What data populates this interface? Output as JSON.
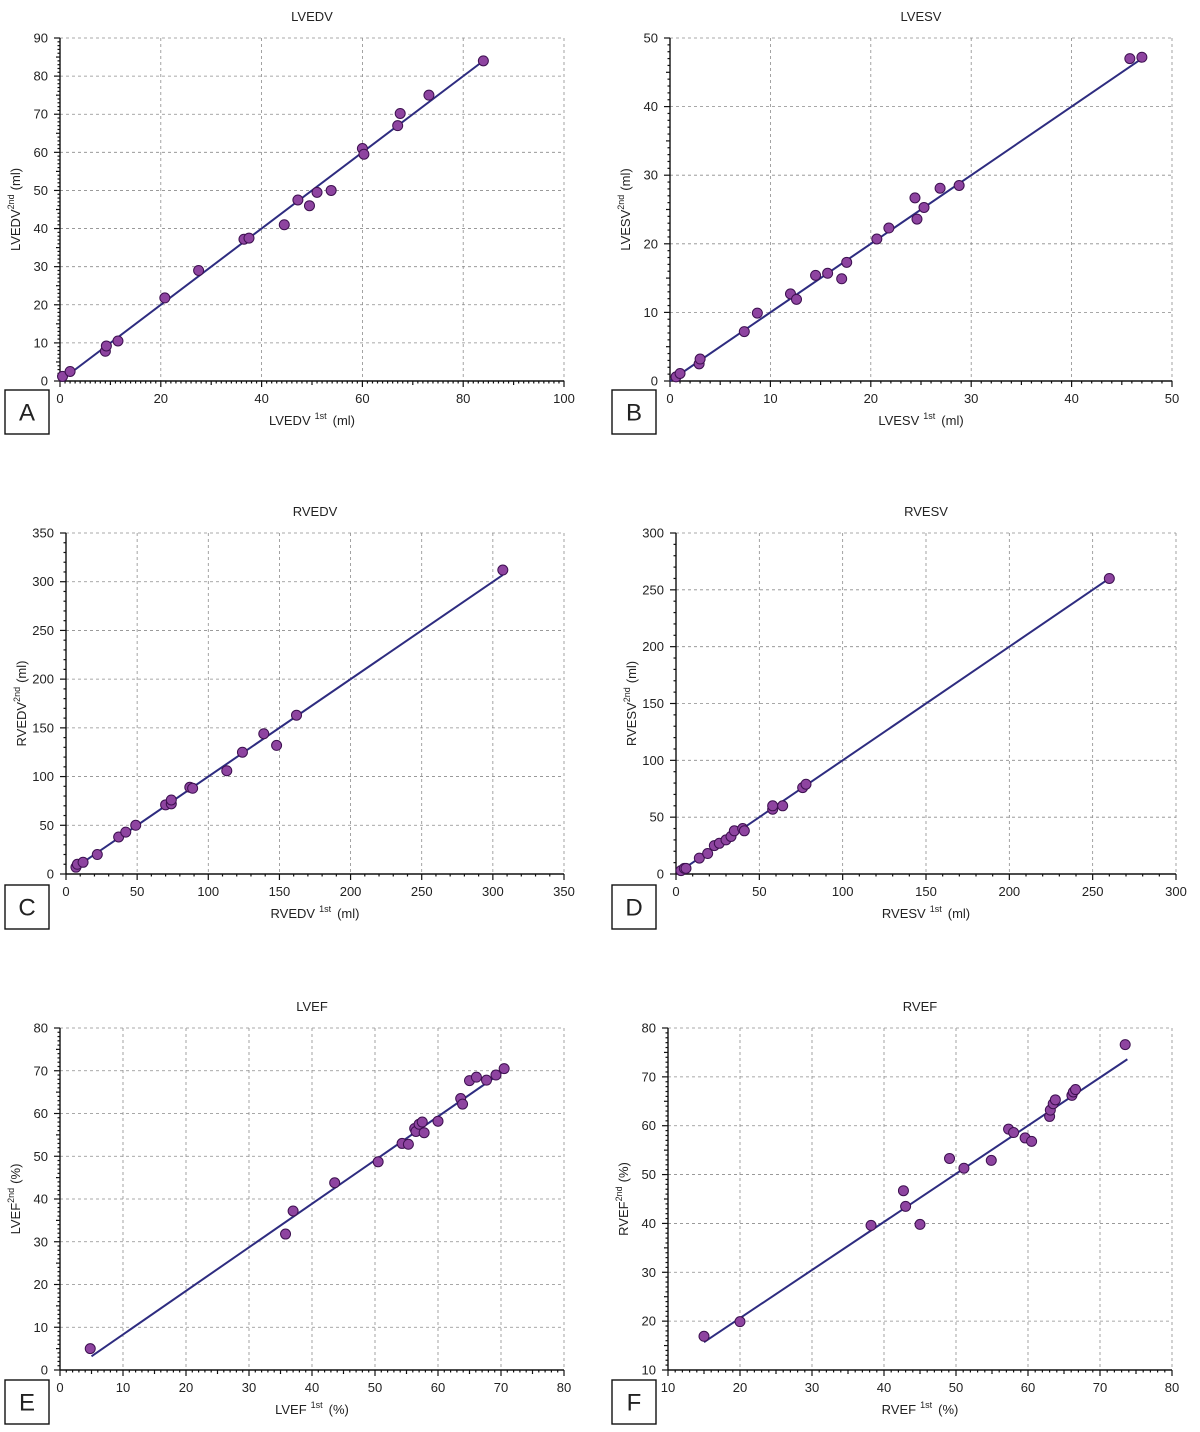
{
  "colors": {
    "point_fill": "#8e44a0",
    "point_stroke": "#3d1050",
    "fit_line": "#2e2c80"
  },
  "chart_data": [
    {
      "type": "scatter",
      "panel_letter": "A",
      "title": "LVEDV",
      "xlabel": {
        "main": "LVEDV",
        "sup": "1st",
        "unit": "(ml)"
      },
      "ylabel": {
        "main": "LVEDV",
        "sup": "2nd",
        "unit": "(ml)"
      },
      "xlim": [
        0,
        100
      ],
      "ylim": [
        0,
        90
      ],
      "xticks": [
        0,
        20,
        40,
        60,
        80,
        100
      ],
      "yticks": [
        0,
        10,
        20,
        30,
        40,
        50,
        60,
        70,
        80,
        90
      ],
      "x_minor": 1,
      "y_minor": 1,
      "fit_line": [
        [
          0,
          0
        ],
        [
          84,
          84
        ]
      ],
      "points": [
        [
          0.5,
          1.2
        ],
        [
          2,
          2.5
        ],
        [
          9,
          7.8
        ],
        [
          9.2,
          9.2
        ],
        [
          11.5,
          10.5
        ],
        [
          20.8,
          21.8
        ],
        [
          27.5,
          29
        ],
        [
          36.5,
          37.2
        ],
        [
          37.5,
          37.5
        ],
        [
          44.5,
          41
        ],
        [
          47.2,
          47.5
        ],
        [
          49.5,
          46
        ],
        [
          51,
          49.5
        ],
        [
          53.8,
          50
        ],
        [
          60,
          61
        ],
        [
          60.3,
          59.5
        ],
        [
          67,
          67
        ],
        [
          67.5,
          70.2
        ],
        [
          73.2,
          75
        ],
        [
          84,
          84
        ]
      ]
    },
    {
      "type": "scatter",
      "panel_letter": "B",
      "title": "LVESV",
      "xlabel": {
        "main": "LVESV",
        "sup": "1st",
        "unit": "(ml)"
      },
      "ylabel": {
        "main": "LVESV",
        "sup": "2nd",
        "unit": "(ml)"
      },
      "xlim": [
        0,
        50
      ],
      "ylim": [
        0,
        50
      ],
      "xticks": [
        0,
        10,
        20,
        30,
        40,
        50
      ],
      "yticks": [
        0,
        10,
        20,
        30,
        40,
        50
      ],
      "x_minor": 1,
      "y_minor": 1,
      "fit_line": [
        [
          0,
          0
        ],
        [
          47,
          47
        ]
      ],
      "points": [
        [
          0.6,
          0.6
        ],
        [
          1,
          1.1
        ],
        [
          2.9,
          2.5
        ],
        [
          3,
          3.2
        ],
        [
          7.4,
          7.2
        ],
        [
          8.7,
          9.9
        ],
        [
          12,
          12.7
        ],
        [
          12.6,
          11.9
        ],
        [
          14.5,
          15.4
        ],
        [
          15.7,
          15.7
        ],
        [
          17.1,
          14.9
        ],
        [
          17.6,
          17.3
        ],
        [
          20.6,
          20.7
        ],
        [
          21.8,
          22.3
        ],
        [
          24.4,
          26.7
        ],
        [
          24.6,
          23.6
        ],
        [
          25.3,
          25.3
        ],
        [
          26.9,
          28.1
        ],
        [
          28.8,
          28.5
        ],
        [
          45.8,
          47
        ],
        [
          47,
          47.2
        ]
      ]
    },
    {
      "type": "scatter",
      "panel_letter": "C",
      "title": "RVEDV",
      "xlabel": {
        "main": "RVEDV",
        "sup": "1st",
        "unit": "(ml)"
      },
      "ylabel": {
        "main": "RVEDV",
        "sup": "2nd",
        "unit": "(ml)"
      },
      "xlim": [
        0,
        350
      ],
      "ylim": [
        0,
        350
      ],
      "xticks": [
        0,
        50,
        100,
        150,
        200,
        250,
        300,
        350
      ],
      "yticks": [
        0,
        50,
        100,
        150,
        200,
        250,
        300,
        350
      ],
      "x_minor": 10,
      "y_minor": 10,
      "fit_line": [
        [
          7,
          7
        ],
        [
          307,
          307
        ]
      ],
      "points": [
        [
          7,
          7
        ],
        [
          8,
          10
        ],
        [
          12,
          12
        ],
        [
          22,
          20
        ],
        [
          37,
          38
        ],
        [
          42,
          43
        ],
        [
          49,
          50
        ],
        [
          70,
          71
        ],
        [
          74,
          72
        ],
        [
          74,
          76
        ],
        [
          87,
          89
        ],
        [
          89,
          88
        ],
        [
          113,
          106
        ],
        [
          124,
          125
        ],
        [
          139,
          144
        ],
        [
          148,
          132
        ],
        [
          162,
          163
        ],
        [
          307,
          312
        ]
      ]
    },
    {
      "type": "scatter",
      "panel_letter": "D",
      "title": "RVESV",
      "xlabel": {
        "main": "RVESV",
        "sup": "1st",
        "unit": "(ml)"
      },
      "ylabel": {
        "main": "RVESV",
        "sup": "2nd",
        "unit": "(ml)"
      },
      "xlim": [
        0,
        300
      ],
      "ylim": [
        0,
        300
      ],
      "xticks": [
        0,
        50,
        100,
        150,
        200,
        250,
        300
      ],
      "yticks": [
        0,
        50,
        100,
        150,
        200,
        250,
        300
      ],
      "x_minor": 10,
      "y_minor": 10,
      "fit_line": [
        [
          2,
          2
        ],
        [
          260,
          260
        ]
      ],
      "points": [
        [
          3,
          3
        ],
        [
          5,
          5
        ],
        [
          6,
          5
        ],
        [
          14,
          14
        ],
        [
          19,
          18
        ],
        [
          23,
          25
        ],
        [
          26,
          27
        ],
        [
          30,
          30
        ],
        [
          33,
          33
        ],
        [
          35,
          38
        ],
        [
          40,
          40
        ],
        [
          41,
          38
        ],
        [
          58,
          57
        ],
        [
          58,
          60
        ],
        [
          64,
          60
        ],
        [
          76,
          76
        ],
        [
          78,
          79
        ],
        [
          260,
          260
        ]
      ]
    },
    {
      "type": "scatter",
      "panel_letter": "E",
      "title": "LVEF",
      "xlabel": {
        "main": "LVEF",
        "sup": "1st",
        "unit": "(%)"
      },
      "ylabel": {
        "main": "LVEF",
        "sup": "2nd",
        "unit": "(%)"
      },
      "xlim": [
        0,
        80
      ],
      "ylim": [
        0,
        80
      ],
      "xticks": [
        0,
        10,
        20,
        30,
        40,
        50,
        60,
        70,
        80
      ],
      "yticks": [
        0,
        10,
        20,
        30,
        40,
        50,
        60,
        70,
        80
      ],
      "x_minor": 1,
      "y_minor": 1,
      "fit_line": [
        [
          5,
          3.2
        ],
        [
          70.5,
          70
        ]
      ],
      "points": [
        [
          4.8,
          5
        ],
        [
          35.8,
          31.8
        ],
        [
          37,
          37.2
        ],
        [
          43.6,
          43.8
        ],
        [
          50.5,
          48.7
        ],
        [
          54.3,
          53
        ],
        [
          55.3,
          52.8
        ],
        [
          56.3,
          56.5
        ],
        [
          56.5,
          55.8
        ],
        [
          57,
          57.5
        ],
        [
          57.5,
          58
        ],
        [
          57.8,
          55.5
        ],
        [
          60,
          58.2
        ],
        [
          63.6,
          63.5
        ],
        [
          63.9,
          62.2
        ],
        [
          65,
          67.7
        ],
        [
          66.1,
          68.5
        ],
        [
          67.7,
          67.8
        ],
        [
          69.2,
          69
        ],
        [
          70.5,
          70.5
        ]
      ]
    },
    {
      "type": "scatter",
      "panel_letter": "F",
      "title": "RVEF",
      "xlabel": {
        "main": "RVEF",
        "sup": "1st",
        "unit": "(%)"
      },
      "ylabel": {
        "main": "RVEF",
        "sup": "2nd",
        "unit": "(%)"
      },
      "xlim": [
        10,
        80
      ],
      "ylim": [
        10,
        80
      ],
      "xticks": [
        10,
        20,
        30,
        40,
        50,
        60,
        70,
        80
      ],
      "yticks": [
        10,
        20,
        30,
        40,
        50,
        60,
        70,
        80
      ],
      "x_minor": 1,
      "y_minor": 1,
      "fit_line": [
        [
          15,
          15.7
        ],
        [
          73.8,
          73.6
        ]
      ],
      "points": [
        [
          15,
          16.9
        ],
        [
          20,
          19.9
        ],
        [
          38.2,
          39.6
        ],
        [
          42.7,
          46.7
        ],
        [
          43,
          43.5
        ],
        [
          45,
          39.8
        ],
        [
          49.1,
          53.3
        ],
        [
          51.1,
          51.3
        ],
        [
          54.9,
          52.9
        ],
        [
          57.3,
          59.3
        ],
        [
          58,
          58.6
        ],
        [
          59.6,
          57.5
        ],
        [
          60.5,
          56.8
        ],
        [
          63,
          61.9
        ],
        [
          63.1,
          63.2
        ],
        [
          63.5,
          64.5
        ],
        [
          63.8,
          65.3
        ],
        [
          66.1,
          66.2
        ],
        [
          66.3,
          66.9
        ],
        [
          66.6,
          67.4
        ],
        [
          73.5,
          76.6
        ]
      ]
    }
  ]
}
